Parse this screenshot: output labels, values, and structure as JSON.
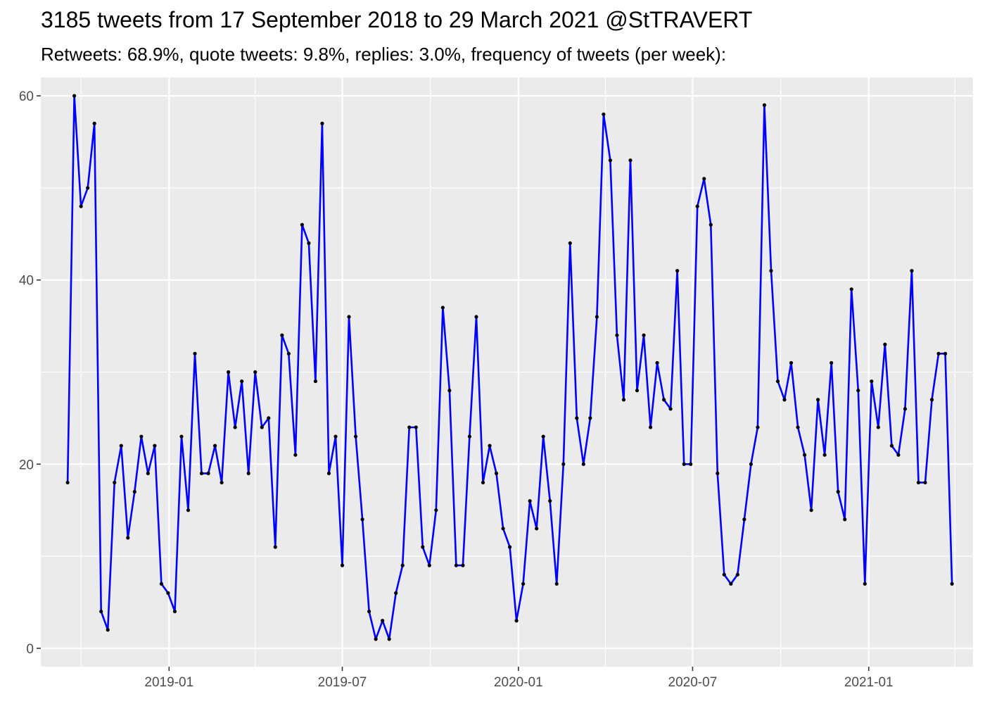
{
  "chart_data": {
    "type": "line",
    "title": "3185 tweets from 17 September 2018 to 29 March 2021 @StTRAVERT",
    "subtitle": "Retweets: 68.9%, quote tweets: 9.8%, replies: 3.0%, frequency of tweets (per week):",
    "xlabel": "",
    "ylabel": "",
    "x_axis": "date",
    "xlim": [
      "2018-08-20",
      "2021-04-20"
    ],
    "ylim": [
      -2,
      62
    ],
    "grid": true,
    "legend": "none",
    "line_color": "#0000ff",
    "point_color": "#000000",
    "background_color": "#ebebeb",
    "x_ticks": [
      {
        "date": "2019-01-01",
        "label": "2019-01"
      },
      {
        "date": "2019-07-01",
        "label": "2019-07"
      },
      {
        "date": "2020-01-01",
        "label": "2020-01"
      },
      {
        "date": "2020-07-01",
        "label": "2020-07"
      },
      {
        "date": "2021-01-01",
        "label": "2021-01"
      }
    ],
    "x_minor_ticks": [
      "2018-10-01",
      "2019-04-01",
      "2019-10-01",
      "2020-04-01",
      "2020-10-01",
      "2021-04-01"
    ],
    "y_ticks": [
      0,
      20,
      40,
      60
    ],
    "y_minor_ticks": [
      10,
      30,
      50
    ],
    "series": [
      {
        "x": [
          "2018-09-17",
          "2018-09-24",
          "2018-10-01",
          "2018-10-08",
          "2018-10-15",
          "2018-10-22",
          "2018-10-29",
          "2018-11-05",
          "2018-11-12",
          "2018-11-19",
          "2018-11-26",
          "2018-12-03",
          "2018-12-10",
          "2018-12-17",
          "2018-12-24",
          "2018-12-31",
          "2019-01-07",
          "2019-01-14",
          "2019-01-21",
          "2019-01-28",
          "2019-02-04",
          "2019-02-11",
          "2019-02-18",
          "2019-02-25",
          "2019-03-04",
          "2019-03-11",
          "2019-03-18",
          "2019-03-25",
          "2019-04-01",
          "2019-04-08",
          "2019-04-15",
          "2019-04-22",
          "2019-04-29",
          "2019-05-06",
          "2019-05-13",
          "2019-05-20",
          "2019-05-27",
          "2019-06-03",
          "2019-06-10",
          "2019-06-17",
          "2019-06-24",
          "2019-07-01",
          "2019-07-08",
          "2019-07-15",
          "2019-07-22",
          "2019-07-29",
          "2019-08-05",
          "2019-08-12",
          "2019-08-19",
          "2019-08-26",
          "2019-09-02",
          "2019-09-09",
          "2019-09-16",
          "2019-09-23",
          "2019-09-30",
          "2019-10-07",
          "2019-10-14",
          "2019-10-21",
          "2019-10-28",
          "2019-11-04",
          "2019-11-11",
          "2019-11-18",
          "2019-11-25",
          "2019-12-02",
          "2019-12-09",
          "2019-12-16",
          "2019-12-23",
          "2019-12-30",
          "2020-01-06",
          "2020-01-13",
          "2020-01-20",
          "2020-01-27",
          "2020-02-03",
          "2020-02-10",
          "2020-02-17",
          "2020-02-24",
          "2020-03-02",
          "2020-03-09",
          "2020-03-16",
          "2020-03-23",
          "2020-03-30",
          "2020-04-06",
          "2020-04-13",
          "2020-04-20",
          "2020-04-27",
          "2020-05-04",
          "2020-05-11",
          "2020-05-18",
          "2020-05-25",
          "2020-06-01",
          "2020-06-08",
          "2020-06-15",
          "2020-06-22",
          "2020-06-29",
          "2020-07-06",
          "2020-07-13",
          "2020-07-20",
          "2020-07-27",
          "2020-08-03",
          "2020-08-10",
          "2020-08-17",
          "2020-08-24",
          "2020-08-31",
          "2020-09-07",
          "2020-09-14",
          "2020-09-21",
          "2020-09-28",
          "2020-10-05",
          "2020-10-12",
          "2020-10-19",
          "2020-10-26",
          "2020-11-02",
          "2020-11-09",
          "2020-11-16",
          "2020-11-23",
          "2020-11-30",
          "2020-12-07",
          "2020-12-14",
          "2020-12-21",
          "2020-12-28",
          "2021-01-04",
          "2021-01-11",
          "2021-01-18",
          "2021-01-25",
          "2021-02-01",
          "2021-02-08",
          "2021-02-15",
          "2021-02-22",
          "2021-03-01",
          "2021-03-08",
          "2021-03-15",
          "2021-03-22",
          "2021-03-29"
        ],
        "values": [
          18,
          60,
          48,
          50,
          57,
          4,
          2,
          18,
          22,
          12,
          17,
          23,
          19,
          22,
          7,
          6,
          4,
          23,
          15,
          32,
          19,
          19,
          22,
          18,
          30,
          24,
          29,
          19,
          30,
          24,
          25,
          11,
          34,
          32,
          21,
          46,
          44,
          29,
          57,
          19,
          23,
          9,
          36,
          23,
          14,
          4,
          1,
          3,
          1,
          6,
          9,
          24,
          24,
          11,
          9,
          15,
          37,
          28,
          9,
          9,
          23,
          36,
          18,
          22,
          19,
          13,
          11,
          3,
          7,
          16,
          13,
          23,
          16,
          7,
          20,
          44,
          25,
          20,
          25,
          36,
          58,
          53,
          34,
          27,
          53,
          28,
          34,
          24,
          31,
          27,
          26,
          41,
          20,
          20,
          48,
          51,
          46,
          19,
          8,
          7,
          8,
          14,
          20,
          24,
          59,
          41,
          29,
          27,
          31,
          24,
          21,
          15,
          27,
          21,
          31,
          17,
          14,
          39,
          28,
          7,
          29,
          24,
          33,
          22,
          21,
          26,
          41,
          18,
          18,
          27,
          32,
          32,
          7
        ]
      }
    ]
  }
}
